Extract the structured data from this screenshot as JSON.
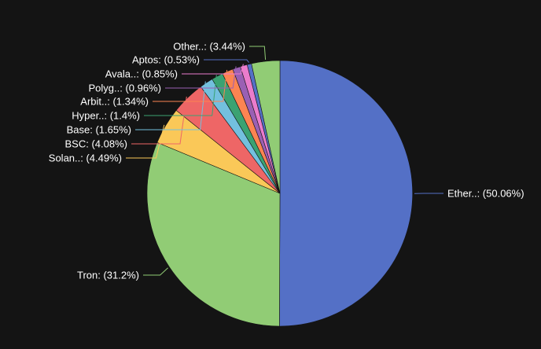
{
  "chart_data": {
    "type": "pie",
    "title": "",
    "legend": "none",
    "start_angle_deg": 0,
    "direction": "clockwise",
    "slices": [
      {
        "label": "Ether..: (50.06%)",
        "value": 50.06,
        "color": "#5470c6"
      },
      {
        "label": "Tron: (31.2%)",
        "value": 31.2,
        "color": "#91cc75"
      },
      {
        "label": "Solan..: (4.49%)",
        "value": 4.49,
        "color": "#fac858"
      },
      {
        "label": "BSC: (4.08%)",
        "value": 4.08,
        "color": "#ee6666"
      },
      {
        "label": "Base: (1.65%)",
        "value": 1.65,
        "color": "#73c0de"
      },
      {
        "label": "Hyper..: (1.4%)",
        "value": 1.4,
        "color": "#3ba272"
      },
      {
        "label": "Arbit..: (1.34%)",
        "value": 1.34,
        "color": "#fc8452"
      },
      {
        "label": "Polyg..: (0.96%)",
        "value": 0.96,
        "color": "#9a60b4"
      },
      {
        "label": "Avala..: (0.85%)",
        "value": 0.85,
        "color": "#ea7ccc"
      },
      {
        "label": "Aptos: (0.53%)",
        "value": 0.53,
        "color": "#5470c6"
      },
      {
        "label": "Other..: (3.44%)",
        "value": 3.44,
        "color": "#91cc75"
      }
    ]
  }
}
